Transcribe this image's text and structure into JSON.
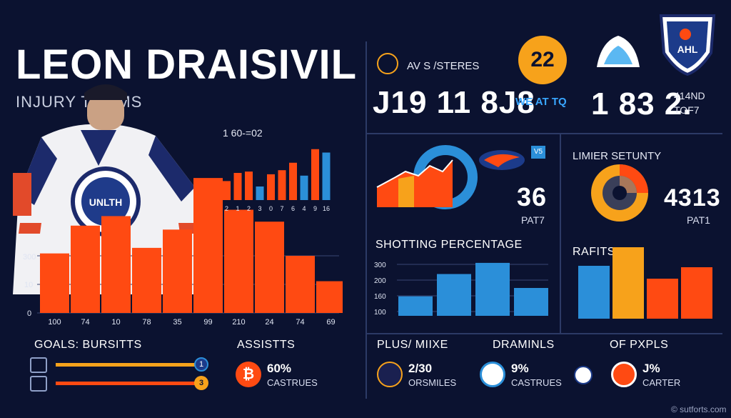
{
  "header": {
    "title": "LEON DRAISIVIL",
    "subtitle": "INJURY    T TEMS"
  },
  "main_chart": {
    "inset_label": "1 60-=02",
    "y_ticks": [
      "0",
      "10",
      "300"
    ],
    "x_labels": [
      "100",
      "74",
      "10",
      "78",
      "35",
      "99",
      "210",
      "24",
      "74",
      "69"
    ],
    "inset_x_labels": [
      "2",
      "1",
      "2",
      "3",
      "0",
      "7",
      "6",
      "4",
      "9",
      "16"
    ]
  },
  "chart_data": [
    {
      "type": "bar",
      "categories": [
        "100",
        "74",
        "10",
        "78",
        "35",
        "99",
        "210",
        "24",
        "74",
        "69"
      ],
      "values": [
        75,
        110,
        122,
        82,
        105,
        170,
        130,
        115,
        72,
        40
      ],
      "color": "#ff4a12"
    },
    {
      "type": "bar",
      "categories": [
        "2",
        "1",
        "2",
        "3",
        "0",
        "7",
        "6",
        "4",
        "9",
        "16"
      ],
      "values": [
        28,
        40,
        42,
        20,
        38,
        44,
        55,
        36,
        75,
        70
      ],
      "colors": [
        "#ff4a12",
        "#ff4a12",
        "#ff4a12",
        "#2b8fd9",
        "#ff4a12",
        "#ff4a12",
        "#ff4a12",
        "#2b8fd9",
        "#ff4a12",
        "#2b8fd9"
      ]
    },
    {
      "type": "bar",
      "title": "SHOTTING PERCENTAGE",
      "y_ticks": [
        "300",
        "200",
        "160",
        "100"
      ],
      "values": [
        28,
        60,
        76,
        40
      ],
      "color": "#2b8fd9"
    },
    {
      "type": "bar",
      "title": "RAFITS",
      "values": [
        74,
        100,
        56,
        72
      ],
      "colors": [
        "#2b8fd9",
        "#f7a21b",
        "#ff4a12",
        "#ff4a12"
      ]
    }
  ],
  "top_right": {
    "label": "AV S /STERES",
    "stat_main": "J19 11 8J8",
    "badge_number": "22",
    "we_at": "WE AT TQ",
    "stat_right": "1 83 2.",
    "stat_right_top": "414ND",
    "stat_right_bottom": "TOF7"
  },
  "middle": {
    "left_stat": "36",
    "left_sub": "PAT7",
    "right_title": "LIMIER SETUNTY",
    "right_stat": "4313",
    "right_sub": "PAT1",
    "badge_small": "V5"
  },
  "bottom": {
    "goals_label": "GOALS: BURSITTS",
    "goals_markers": [
      "1",
      "3"
    ],
    "assists_label": "ASSISTTS",
    "assists_value": "60%",
    "assists_sub": "CASTRUES",
    "plus_label": "PLUS/ MIIXE",
    "plus_value": "2/30",
    "plus_sub": "ORSMILES",
    "dram_label": "DRAMINLS",
    "dram_value": "9%",
    "dram_sub": "CASTRUES",
    "of_label": "OF PXPLS",
    "of_value": "J%",
    "of_sub": "CARTER"
  },
  "footer": {
    "credit": "© sutforts.com"
  },
  "colors": {
    "background": "#0b1230",
    "orange": "#ff4a12",
    "blue": "#2b8fd9",
    "gold": "#f7a21b"
  }
}
